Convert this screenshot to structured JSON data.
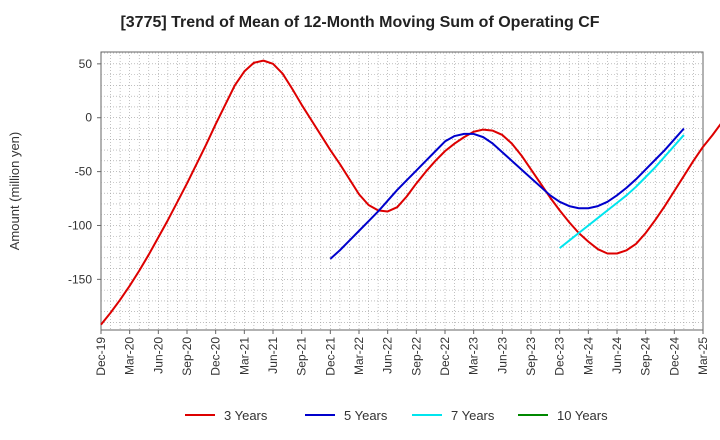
{
  "chart_data": {
    "type": "line",
    "title": "[3775]  Trend of Mean of 12-Month Moving Sum of Operating CF",
    "xlabel": "",
    "ylabel": "Amount (million yen)",
    "ylim": [
      -197,
      61
    ],
    "yticks": [
      50,
      0,
      -50,
      -100,
      -150
    ],
    "xticks": [
      "Dec-19",
      "Mar-20",
      "Jun-20",
      "Sep-20",
      "Dec-20",
      "Mar-21",
      "Jun-21",
      "Sep-21",
      "Dec-21",
      "Mar-22",
      "Jun-22",
      "Sep-22",
      "Dec-22",
      "Mar-23",
      "Jun-23",
      "Sep-23",
      "Dec-23",
      "Mar-24",
      "Jun-24",
      "Sep-24",
      "Dec-24",
      "Mar-25"
    ],
    "x_start": "Dec-19",
    "grid": true,
    "legend_position": "bottom",
    "series": [
      {
        "name": "3 Years",
        "color": "#dd0000",
        "start_month_index": 0,
        "values": [
          -192,
          -181,
          -169,
          -156,
          -142,
          -127,
          -111,
          -95,
          -78,
          -61,
          -43,
          -25,
          -6,
          12,
          30,
          43,
          51,
          53,
          50,
          41,
          27,
          12,
          -2,
          -16,
          -30,
          -43,
          -57,
          -71,
          -81,
          -86,
          -87,
          -83,
          -73,
          -61,
          -50,
          -40,
          -31,
          -24,
          -18,
          -13,
          -11,
          -12,
          -16,
          -24,
          -35,
          -48,
          -61,
          -74,
          -86,
          -97,
          -107,
          -115,
          -122,
          -126,
          -126,
          -123,
          -117,
          -107,
          -95,
          -82,
          -68,
          -54,
          -40,
          -27,
          -16,
          -4
        ]
      },
      {
        "name": "5 Years",
        "color": "#0000cc",
        "start_month_index": 24,
        "values": [
          -131,
          -123,
          -114,
          -105,
          -96,
          -87,
          -77,
          -67,
          -58,
          -49,
          -40,
          -31,
          -22,
          -17,
          -15,
          -15,
          -18,
          -24,
          -32,
          -40,
          -48,
          -56,
          -64,
          -72,
          -78,
          -82,
          -84,
          -84,
          -82,
          -78,
          -72,
          -65,
          -57,
          -48,
          -39,
          -30,
          -20,
          -10
        ]
      },
      {
        "name": "7 Years",
        "color": "#00e5ee",
        "start_month_index": 48,
        "values": [
          -121,
          -114,
          -107,
          -100,
          -93,
          -86,
          -79,
          -72,
          -64,
          -55,
          -46,
          -36,
          -26,
          -16
        ]
      },
      {
        "name": "10 Years",
        "color": "#008800",
        "start_month_index": 0,
        "values": []
      }
    ]
  }
}
